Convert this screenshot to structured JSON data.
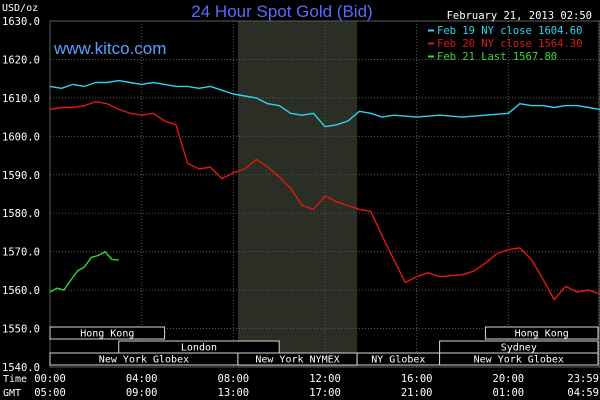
{
  "title": "24 Hour Spot Gold (Bid)",
  "timestamp": "February 21, 2013 02:50",
  "brand": "www.kitco.com",
  "unit_label": "USD/oz",
  "colors": {
    "background": "#000000",
    "title": "#5A6BFF",
    "brand": "#5AA0FF",
    "grid": "#5a5a5a",
    "text": "#ffffff",
    "shade": "#2a2e24",
    "series_feb19": "#2ED3F0",
    "series_feb20": "#E01818",
    "series_feb21": "#3BD63B"
  },
  "chart_data": {
    "type": "line",
    "title": "24 Hour Spot Gold (Bid)",
    "ylabel": "USD/oz",
    "ylim": [
      1540,
      1630
    ],
    "yticks": [
      1540,
      1550,
      1560,
      1570,
      1580,
      1590,
      1600,
      1610,
      1620,
      1630
    ],
    "ytick_labels": [
      "1540.0",
      "1550.0",
      "1560.0",
      "1570.0",
      "1580.0",
      "1590.0",
      "1600.0",
      "1610.0",
      "1620.0",
      "1630.0"
    ],
    "xlim": [
      0,
      24
    ],
    "xaxis_rows": [
      {
        "label": "Time",
        "ticks": [
          "00:00",
          "04:00",
          "08:00",
          "12:00",
          "16:00",
          "20:00",
          "23:59"
        ]
      },
      {
        "label": "GMT",
        "ticks": [
          "05:00",
          "09:00",
          "13:00",
          "17:00",
          "21:00",
          "01:00",
          "04:59"
        ]
      }
    ],
    "shaded_hours": [
      8.2,
      13.4
    ],
    "grid": true,
    "legend_position": "top-right",
    "legend": [
      {
        "label": "Feb 19 NY close 1604.60",
        "color": "#2ED3F0"
      },
      {
        "label": "Feb 20 NY close 1564.30",
        "color": "#E01818"
      },
      {
        "label": "Feb 21 Last 1567.80",
        "color": "#3BD63B"
      }
    ],
    "sessions": [
      {
        "label": "Hong Kong",
        "start": 0.0,
        "end": 5.0,
        "row": 0
      },
      {
        "label": "London",
        "start": 3.0,
        "end": 10.0,
        "row": 1
      },
      {
        "label": "New York Globex",
        "start": 0.0,
        "end": 8.2,
        "row": 2
      },
      {
        "label": "New York NYMEX",
        "start": 8.2,
        "end": 13.4,
        "row": 2
      },
      {
        "label": "NY Globex",
        "start": 13.4,
        "end": 17.0,
        "row": 2
      },
      {
        "label": "Hong Kong",
        "start": 19.0,
        "end": 24.0,
        "row": 0
      },
      {
        "label": "Sydney",
        "start": 17.0,
        "end": 24.0,
        "row": 1
      },
      {
        "label": "New York Globex",
        "start": 17.0,
        "end": 24.0,
        "row": 2
      }
    ],
    "series": [
      {
        "name": "Feb 19",
        "color": "#2ED3F0",
        "x": [
          0,
          0.5,
          1,
          1.5,
          2,
          2.5,
          3,
          3.5,
          4,
          4.5,
          5,
          5.5,
          6,
          6.5,
          7,
          7.5,
          8,
          8.5,
          9,
          9.5,
          10,
          10.5,
          11,
          11.5,
          12,
          12.5,
          13,
          13.5,
          14,
          14.5,
          15,
          16,
          17,
          18,
          19,
          20,
          20.5,
          21,
          21.5,
          22,
          22.5,
          23,
          23.5,
          24
        ],
        "y": [
          1613,
          1612.5,
          1613.5,
          1613,
          1614,
          1614,
          1614.5,
          1614,
          1613.5,
          1614,
          1613.5,
          1613,
          1613,
          1612.5,
          1613,
          1612,
          1611,
          1610.5,
          1610,
          1608.5,
          1608,
          1606,
          1605.5,
          1606,
          1602.5,
          1603,
          1604,
          1606.5,
          1606,
          1605,
          1605.5,
          1605,
          1605.5,
          1605,
          1605.5,
          1606,
          1608.5,
          1608,
          1608,
          1607.5,
          1608,
          1608,
          1607.5,
          1607
        ]
      },
      {
        "name": "Feb 20",
        "color": "#E01818",
        "x": [
          0,
          0.5,
          1,
          1.5,
          2,
          2.5,
          3,
          3.5,
          4,
          4.5,
          5,
          5.5,
          6,
          6.5,
          7,
          7.5,
          8,
          8.5,
          9,
          9.5,
          10,
          10.5,
          11,
          11.5,
          12,
          12.5,
          13,
          13.5,
          14,
          14.5,
          15,
          15.5,
          16,
          16.5,
          17,
          18,
          18.5,
          19,
          19.5,
          20,
          20.5,
          21,
          21.5,
          22,
          22.5,
          23,
          23.5,
          24
        ],
        "y": [
          1607,
          1607.5,
          1607.5,
          1608,
          1609,
          1608.5,
          1607,
          1606,
          1605.5,
          1606,
          1604,
          1603,
          1593,
          1591.5,
          1592,
          1589,
          1590.5,
          1591.5,
          1594,
          1592,
          1589.5,
          1586.5,
          1582,
          1581,
          1584.5,
          1583,
          1582,
          1581,
          1580.5,
          1574,
          1568,
          1562,
          1563.5,
          1564.5,
          1563.5,
          1564,
          1565,
          1567,
          1569.5,
          1570.5,
          1571,
          1568,
          1563,
          1557.5,
          1561,
          1559.5,
          1560,
          1559
        ]
      },
      {
        "name": "Feb 21",
        "color": "#3BD63B",
        "x": [
          0,
          0.3,
          0.6,
          0.9,
          1.2,
          1.5,
          1.8,
          2.1,
          2.4,
          2.7,
          3.0
        ],
        "y": [
          1559.5,
          1560.5,
          1560,
          1562.5,
          1565,
          1566,
          1568.5,
          1569,
          1570,
          1568,
          1567.8
        ]
      }
    ]
  }
}
